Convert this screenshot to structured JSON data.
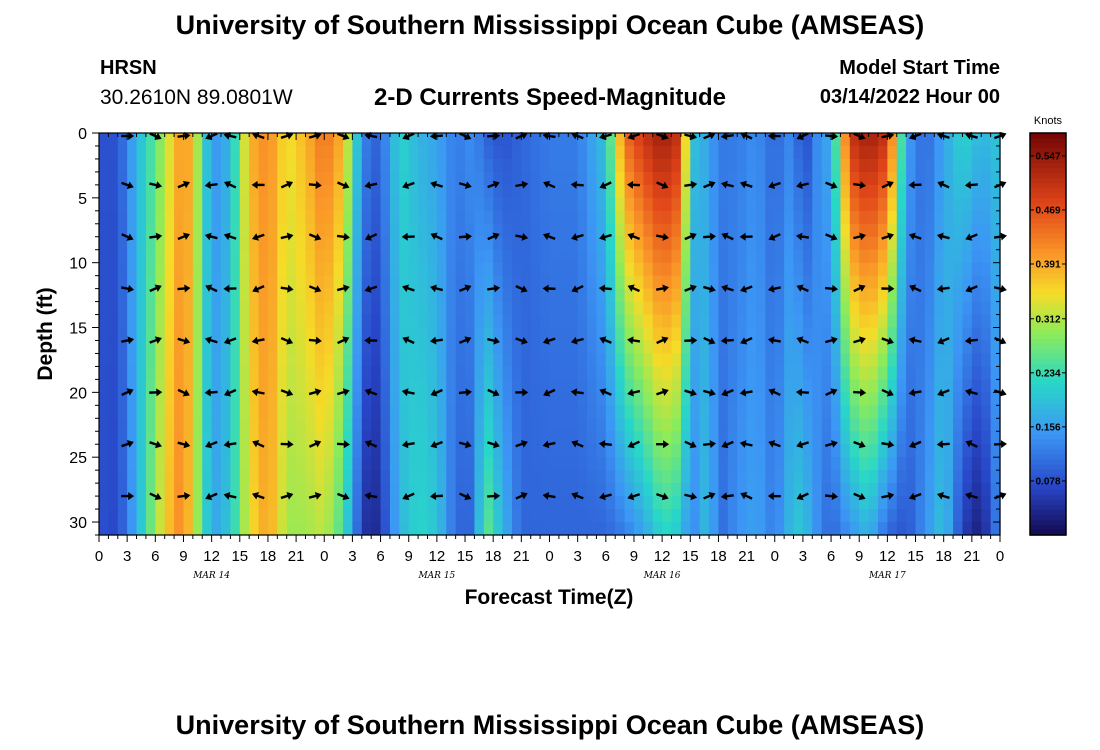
{
  "header": {
    "title": "University of Southern Mississippi Ocean Cube (AMSEAS)",
    "station": "HRSN",
    "coordinates": "30.2610N  89.0801W",
    "subtitle": "2-D Currents Speed-Magnitude",
    "model_start_label": "Model Start Time",
    "model_start_date": "03/14/2022 Hour 00",
    "footer_title": "University of Southern Mississippi Ocean Cube (AMSEAS)"
  },
  "chart_data": {
    "type": "heatmap",
    "xlabel": "Forecast Time(Z)",
    "ylabel": "Depth (ft)",
    "xlim": [
      0,
      96
    ],
    "ylim": [
      0,
      31
    ],
    "x_ticks": [
      0,
      3,
      6,
      9,
      12,
      15,
      18,
      21,
      24,
      27,
      30,
      33,
      36,
      39,
      42,
      45,
      48,
      51,
      54,
      57,
      60,
      63,
      66,
      69,
      72,
      75,
      78,
      81,
      84,
      87,
      90,
      93,
      96
    ],
    "x_tick_labels": [
      "0",
      "3",
      "6",
      "9",
      "12",
      "15",
      "18",
      "21",
      "0",
      "3",
      "6",
      "9",
      "12",
      "15",
      "18",
      "21",
      "0",
      "3",
      "6",
      "9",
      "12",
      "15",
      "18",
      "21",
      "0",
      "3",
      "6",
      "9",
      "12",
      "15",
      "18",
      "21",
      "0"
    ],
    "y_ticks": [
      0,
      5,
      10,
      15,
      20,
      25,
      30
    ],
    "y_tick_labels": [
      "0",
      "5",
      "10",
      "15",
      "20",
      "25",
      "30"
    ],
    "day_labels": [
      {
        "hour": 12,
        "label": "MAR 14"
      },
      {
        "hour": 36,
        "label": "MAR 15"
      },
      {
        "hour": 60,
        "label": "MAR 16"
      },
      {
        "hour": 84,
        "label": "MAR 17"
      }
    ],
    "colorbar": {
      "unit": "Knots",
      "range": [
        0.0,
        0.58
      ],
      "ticks": [
        0.547,
        0.469,
        0.391,
        0.312,
        0.234,
        0.156,
        0.078
      ],
      "tick_labels": [
        "0.547",
        "0.469",
        "0.391",
        "0.312",
        "0.234",
        "0.156",
        "0.078"
      ]
    },
    "vector_depths": [
      0,
      4,
      8,
      12,
      16,
      20,
      24,
      28
    ],
    "vector_hours": [
      3,
      6,
      9,
      12,
      14,
      17,
      20,
      23,
      26,
      29,
      33,
      36,
      39,
      42,
      45,
      48,
      51,
      54,
      57,
      60,
      63,
      65,
      67,
      69,
      72,
      75,
      78,
      81,
      84,
      87,
      90,
      93,
      96
    ],
    "speed_profiles": [
      {
        "hour": 0,
        "surface": 0.08,
        "bottom": 0.08
      },
      {
        "hour": 2,
        "surface": 0.08,
        "bottom": 0.07
      },
      {
        "hour": 4,
        "surface": 0.18,
        "bottom": 0.17
      },
      {
        "hour": 6,
        "surface": 0.26,
        "bottom": 0.3
      },
      {
        "hour": 8,
        "surface": 0.36,
        "bottom": 0.4
      },
      {
        "hour": 9,
        "surface": 0.42,
        "bottom": 0.42
      },
      {
        "hour": 10,
        "surface": 0.36,
        "bottom": 0.34
      },
      {
        "hour": 12,
        "surface": 0.14,
        "bottom": 0.16
      },
      {
        "hour": 14,
        "surface": 0.18,
        "bottom": 0.2
      },
      {
        "hour": 16,
        "surface": 0.38,
        "bottom": 0.34
      },
      {
        "hour": 18,
        "surface": 0.42,
        "bottom": 0.4
      },
      {
        "hour": 20,
        "surface": 0.34,
        "bottom": 0.3
      },
      {
        "hour": 22,
        "surface": 0.38,
        "bottom": 0.3
      },
      {
        "hour": 24,
        "surface": 0.44,
        "bottom": 0.32
      },
      {
        "hour": 26,
        "surface": 0.38,
        "bottom": 0.24
      },
      {
        "hour": 28,
        "surface": 0.14,
        "bottom": 0.06
      },
      {
        "hour": 29,
        "surface": 0.1,
        "bottom": 0.03
      },
      {
        "hour": 30,
        "surface": 0.1,
        "bottom": 0.05
      },
      {
        "hour": 32,
        "surface": 0.22,
        "bottom": 0.18
      },
      {
        "hour": 34,
        "surface": 0.18,
        "bottom": 0.22
      },
      {
        "hour": 36,
        "surface": 0.16,
        "bottom": 0.2
      },
      {
        "hour": 38,
        "surface": 0.12,
        "bottom": 0.1
      },
      {
        "hour": 40,
        "surface": 0.14,
        "bottom": 0.1
      },
      {
        "hour": 41,
        "surface": 0.1,
        "bottom": 0.28
      },
      {
        "hour": 43,
        "surface": 0.08,
        "bottom": 0.18
      },
      {
        "hour": 45,
        "surface": 0.1,
        "bottom": 0.1
      },
      {
        "hour": 48,
        "surface": 0.12,
        "bottom": 0.1
      },
      {
        "hour": 51,
        "surface": 0.12,
        "bottom": 0.1
      },
      {
        "hour": 54,
        "surface": 0.2,
        "bottom": 0.1
      },
      {
        "hour": 56,
        "surface": 0.44,
        "bottom": 0.12
      },
      {
        "hour": 58,
        "surface": 0.5,
        "bottom": 0.16
      },
      {
        "hour": 60,
        "surface": 0.54,
        "bottom": 0.22
      },
      {
        "hour": 62,
        "surface": 0.5,
        "bottom": 0.2
      },
      {
        "hour": 63,
        "surface": 0.2,
        "bottom": 0.12
      },
      {
        "hour": 65,
        "surface": 0.16,
        "bottom": 0.2
      },
      {
        "hour": 66,
        "surface": 0.12,
        "bottom": 0.1
      },
      {
        "hour": 68,
        "surface": 0.12,
        "bottom": 0.14
      },
      {
        "hour": 70,
        "surface": 0.14,
        "bottom": 0.16
      },
      {
        "hour": 72,
        "surface": 0.1,
        "bottom": 0.12
      },
      {
        "hour": 74,
        "surface": 0.14,
        "bottom": 0.2
      },
      {
        "hour": 75,
        "surface": 0.06,
        "bottom": 0.2
      },
      {
        "hour": 77,
        "surface": 0.16,
        "bottom": 0.12
      },
      {
        "hour": 78,
        "surface": 0.16,
        "bottom": 0.1
      },
      {
        "hour": 80,
        "surface": 0.5,
        "bottom": 0.14
      },
      {
        "hour": 82,
        "surface": 0.54,
        "bottom": 0.18
      },
      {
        "hour": 84,
        "surface": 0.5,
        "bottom": 0.1
      },
      {
        "hour": 86,
        "surface": 0.16,
        "bottom": 0.08
      },
      {
        "hour": 88,
        "surface": 0.1,
        "bottom": 0.14
      },
      {
        "hour": 90,
        "surface": 0.16,
        "bottom": 0.2
      },
      {
        "hour": 92,
        "surface": 0.22,
        "bottom": 0.06
      },
      {
        "hour": 94,
        "surface": 0.18,
        "bottom": 0.02
      },
      {
        "hour": 96,
        "surface": 0.2,
        "bottom": 0.14
      }
    ]
  }
}
